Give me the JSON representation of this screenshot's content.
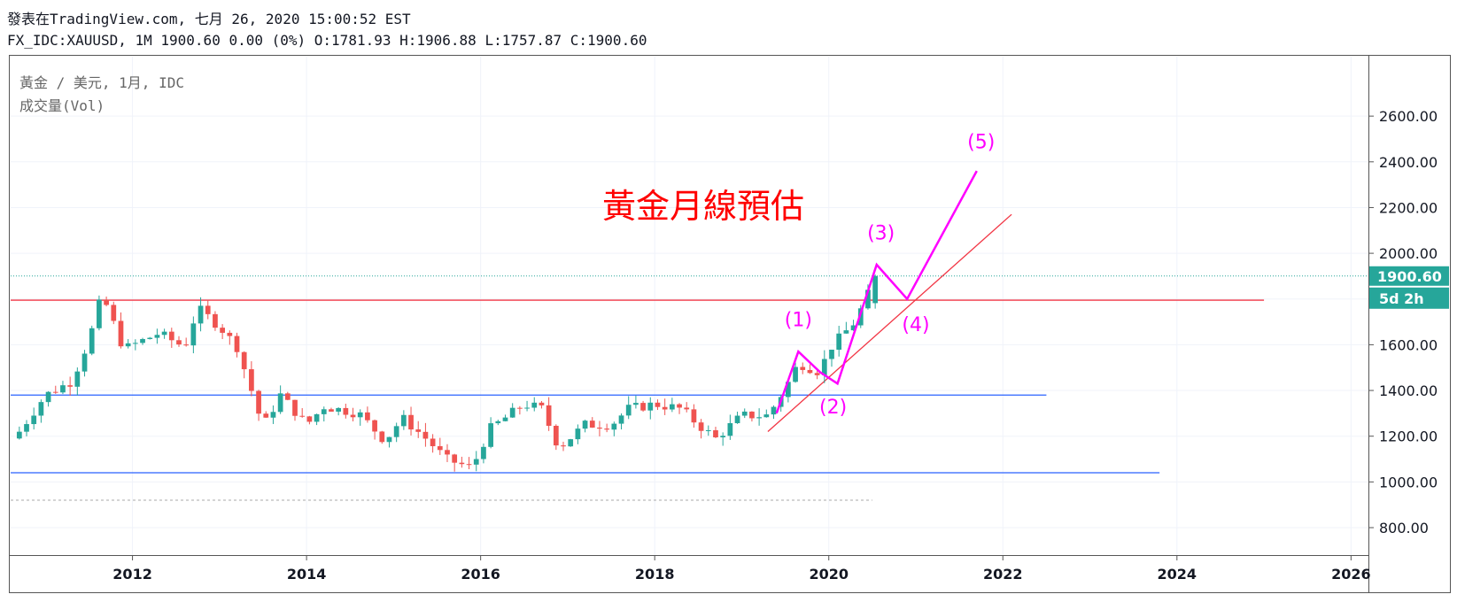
{
  "header": {
    "line1": "發表在TradingView.com, 七月 26, 2020 15:00:52 EST",
    "line2": "FX_IDC:XAUUSD, 1M 1900.60 0.00 (0%) O:1781.93 H:1906.88 L:1757.87 C:1900.60"
  },
  "legend": {
    "symbol": "黃金 / 美元, 1月, IDC",
    "volume": "成交量(Vol)"
  },
  "chart_data": {
    "type": "candlestick",
    "title": "黃金月線預估",
    "xlim": [
      2010.6,
      2026.2
    ],
    "ylim": [
      680,
      2860
    ],
    "x_ticks": [
      "2012",
      "2014",
      "2016",
      "2018",
      "2020",
      "2022",
      "2024",
      "2026"
    ],
    "y_ticks": [
      "800.00",
      "1000.00",
      "1200.00",
      "1400.00",
      "1600.00",
      "1800.00",
      "2000.00",
      "2200.00",
      "2400.00",
      "2600.00"
    ],
    "last_price": {
      "value": 1900.6,
      "label": "1900.60",
      "countdown": "5d 2h"
    },
    "ohlc": {
      "open": 1781.93,
      "high": 1906.88,
      "low": 1757.87,
      "close": 1900.6
    },
    "close_anchors": [
      {
        "t": 2010.7,
        "c": 1220
      },
      {
        "t": 2011.0,
        "c": 1380
      },
      {
        "t": 2011.3,
        "c": 1440
      },
      {
        "t": 2011.5,
        "c": 1620
      },
      {
        "t": 2011.65,
        "c": 1820
      },
      {
        "t": 2011.9,
        "c": 1580
      },
      {
        "t": 2012.3,
        "c": 1650
      },
      {
        "t": 2012.6,
        "c": 1590
      },
      {
        "t": 2012.75,
        "c": 1760
      },
      {
        "t": 2013.0,
        "c": 1680
      },
      {
        "t": 2013.2,
        "c": 1590
      },
      {
        "t": 2013.35,
        "c": 1420
      },
      {
        "t": 2013.5,
        "c": 1240
      },
      {
        "t": 2013.7,
        "c": 1380
      },
      {
        "t": 2014.0,
        "c": 1250
      },
      {
        "t": 2014.2,
        "c": 1330
      },
      {
        "t": 2014.6,
        "c": 1300
      },
      {
        "t": 2014.9,
        "c": 1180
      },
      {
        "t": 2015.1,
        "c": 1280
      },
      {
        "t": 2015.4,
        "c": 1180
      },
      {
        "t": 2015.6,
        "c": 1100
      },
      {
        "t": 2015.9,
        "c": 1060
      },
      {
        "t": 2016.1,
        "c": 1230
      },
      {
        "t": 2016.5,
        "c": 1340
      },
      {
        "t": 2016.7,
        "c": 1320
      },
      {
        "t": 2016.9,
        "c": 1150
      },
      {
        "t": 2017.2,
        "c": 1250
      },
      {
        "t": 2017.5,
        "c": 1250
      },
      {
        "t": 2017.7,
        "c": 1320
      },
      {
        "t": 2018.0,
        "c": 1340
      },
      {
        "t": 2018.3,
        "c": 1320
      },
      {
        "t": 2018.5,
        "c": 1250
      },
      {
        "t": 2018.7,
        "c": 1190
      },
      {
        "t": 2019.0,
        "c": 1290
      },
      {
        "t": 2019.3,
        "c": 1290
      },
      {
        "t": 2019.5,
        "c": 1410
      },
      {
        "t": 2019.65,
        "c": 1520
      },
      {
        "t": 2019.9,
        "c": 1480
      },
      {
        "t": 2020.0,
        "c": 1580
      },
      {
        "t": 2020.3,
        "c": 1700
      },
      {
        "t": 2020.4,
        "c": 1780
      },
      {
        "t": 2020.55,
        "c": 1900
      }
    ],
    "horizontal_lines": [
      {
        "name": "resistance-line",
        "y": 1795,
        "x_end": 2025.0,
        "color": "#f23645"
      },
      {
        "name": "upper-range-line",
        "y": 1380,
        "x_end": 2022.5,
        "color": "#2962ff"
      },
      {
        "name": "lower-range-line",
        "y": 1040,
        "x_end": 2023.8,
        "color": "#2962ff"
      }
    ],
    "dotted_line": {
      "y": 1900.6,
      "color": "#26a69a"
    },
    "dashed_line": {
      "y": 920,
      "x_end": 2020.5,
      "color": "#aaaaaa"
    },
    "trend_line": {
      "from": [
        2019.3,
        1220
      ],
      "to": [
        2022.1,
        2170
      ],
      "color": "#f23645"
    },
    "wave_path": [
      [
        2019.4,
        1300
      ],
      [
        2019.65,
        1570
      ],
      [
        2019.9,
        1480
      ],
      [
        2020.1,
        1430
      ],
      [
        2020.55,
        1950
      ],
      [
        2020.9,
        1800
      ],
      [
        2021.7,
        2360
      ]
    ],
    "wave_labels": [
      {
        "label": "(1)",
        "t": 2019.65,
        "y": 1680
      },
      {
        "label": "(2)",
        "t": 2020.05,
        "y": 1300
      },
      {
        "label": "(3)",
        "t": 2020.6,
        "y": 2060
      },
      {
        "label": "(4)",
        "t": 2021.0,
        "y": 1660
      },
      {
        "label": "(5)",
        "t": 2021.75,
        "y": 2460
      }
    ],
    "colors": {
      "up": "#26a69a",
      "down": "#ef5350",
      "wave": "#ff00ff",
      "annotation": "#ff0000",
      "axis": "#131722"
    }
  }
}
